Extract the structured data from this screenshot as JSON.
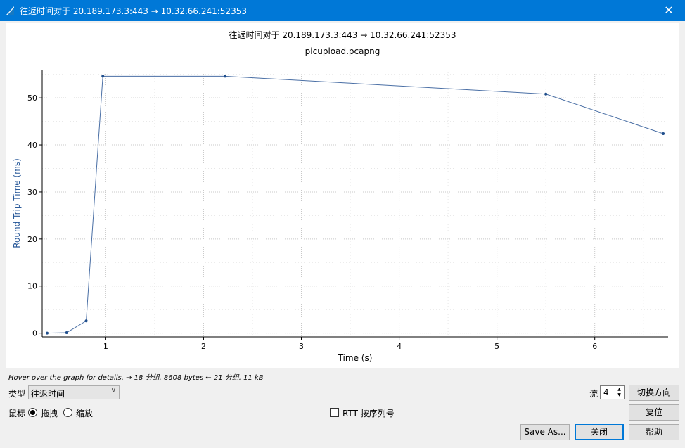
{
  "window": {
    "title": "往返时间对于 20.189.173.3:443 → 10.32.66.241:52353",
    "close_glyph": "✕"
  },
  "chart_data": {
    "type": "line",
    "title": "往返时间对于 20.189.173.3:443 → 10.32.66.241:52353",
    "subtitle": "picupload.pcapng",
    "xlabel": "Time (s)",
    "ylabel": "Round Trip Time (ms)",
    "xlim": [
      0.35,
      6.75
    ],
    "ylim": [
      -0.8,
      56
    ],
    "xticks": [
      1,
      2,
      3,
      4,
      5,
      6
    ],
    "yticks": [
      0,
      10,
      20,
      30,
      40,
      50
    ],
    "grid": true,
    "series": [
      {
        "x": [
          0.4,
          0.6,
          0.8,
          0.97,
          2.22,
          5.5,
          6.7
        ],
        "y": [
          0.0,
          0.1,
          2.6,
          54.6,
          54.6,
          50.8,
          42.4
        ]
      }
    ],
    "line_color": "#4a6fa5",
    "marker_color": "#1f4e8c"
  },
  "status": {
    "hover_hint": "Hover over the graph for details. → 18 分组, 8608 bytes ← 21 分组, 11 kB"
  },
  "controls": {
    "type_label": "类型",
    "type_value": "往返时间",
    "mouse_label": "鼠标",
    "drag_label": "拖拽",
    "zoom_label": "缩放",
    "rtt_label": "RTT 按序列号",
    "stream_label": "流",
    "stream_value": "4",
    "switch_direction": "切换方向",
    "reset": "复位",
    "save_as": "Save As...",
    "close": "关闭",
    "help": "帮助"
  }
}
